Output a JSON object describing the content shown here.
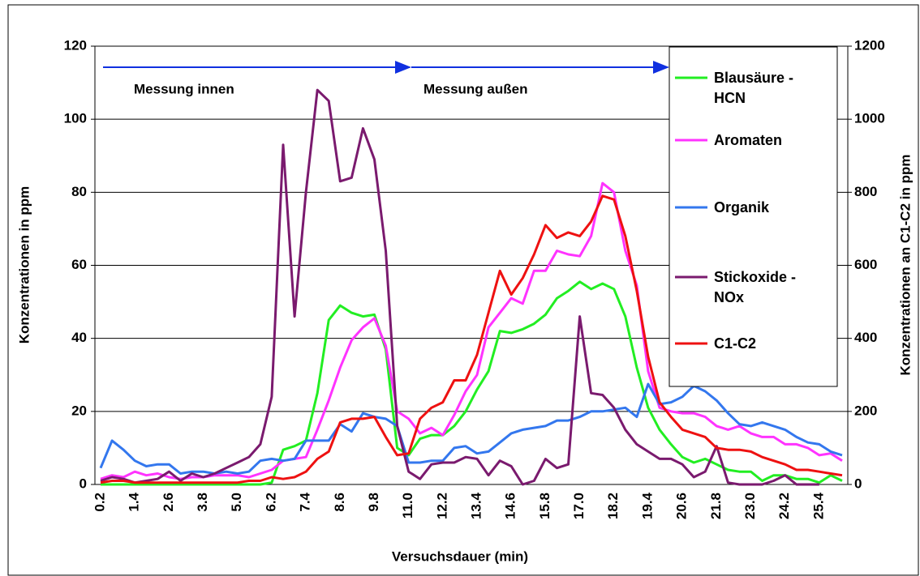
{
  "chart_data": {
    "type": "line",
    "xlabel": "Versuchsdauer (min)",
    "ylabel": "Konzentrationen in ppm",
    "y2label": "Konzentrationen an C1-C2 in ppm",
    "annotations": [
      "Messung innen",
      "Messung außen"
    ],
    "categories": [
      "0.2",
      null,
      null,
      "1.4",
      null,
      null,
      "2.6",
      null,
      null,
      "3.8",
      null,
      null,
      "5.0",
      null,
      null,
      "6.2",
      null,
      null,
      "7.4",
      null,
      null,
      "8.6",
      null,
      null,
      "9.8",
      null,
      null,
      "11.0",
      null,
      null,
      "12.2",
      null,
      null,
      "13.4",
      null,
      null,
      "14.6",
      null,
      null,
      "15.8",
      null,
      null,
      "17.0",
      null,
      null,
      "18.2",
      null,
      null,
      "19.4",
      null,
      null,
      "20.6",
      null,
      null,
      "21.8",
      null,
      null,
      "23.0",
      null,
      null,
      "24.2",
      null,
      null,
      "25.4",
      null,
      null
    ],
    "ylim": [
      0,
      120
    ],
    "yticks": [
      0,
      20,
      40,
      60,
      80,
      100,
      120
    ],
    "y2lim": [
      0,
      1200
    ],
    "y2ticks": [
      0,
      200,
      400,
      600,
      800,
      1000,
      1200
    ],
    "grid": true,
    "series": [
      {
        "name": "Blausäure - HCN",
        "color": "#22ee22",
        "values": [
          0,
          0,
          0,
          0,
          0,
          0,
          0,
          0,
          0,
          0,
          0,
          0,
          0,
          0,
          0,
          0.5,
          9.5,
          10.5,
          12,
          25,
          45,
          49,
          47,
          46,
          46.5,
          37,
          10,
          8,
          12.5,
          13.5,
          13.5,
          16,
          20,
          26,
          31,
          42,
          41.5,
          42.5,
          44,
          46.5,
          51,
          53,
          55.5,
          53.5,
          55,
          53.5,
          46,
          32,
          21,
          15,
          11,
          7.5,
          6,
          7,
          5.5,
          4,
          3.5,
          3.5,
          1,
          2.5,
          2.5,
          1.5,
          1.5,
          0.5,
          2.5,
          1
        ]
      },
      {
        "name": "Aromaten",
        "color": "#ff33ff",
        "values": [
          1.5,
          2.5,
          2,
          3.5,
          2.5,
          3,
          2,
          1.5,
          2,
          2,
          2.5,
          2.5,
          2.5,
          2,
          3,
          4,
          6.5,
          7,
          7.5,
          15,
          23,
          32,
          39.5,
          43,
          45.5,
          38,
          20,
          18,
          14,
          15.5,
          13.5,
          19,
          25.5,
          30,
          43,
          47,
          51,
          49.5,
          58.5,
          58.5,
          64,
          63,
          62.5,
          68,
          82.5,
          80,
          64,
          54.5,
          31,
          21,
          20,
          19.5,
          19.5,
          18.5,
          16,
          15,
          16,
          14,
          13,
          13,
          11,
          11,
          10,
          8,
          8.5,
          6.5
        ]
      },
      {
        "name": "Organik",
        "color": "#3377ee",
        "values": [
          4.5,
          12,
          9.5,
          6.5,
          5,
          5.5,
          5.5,
          3,
          3.5,
          3.5,
          3,
          3.5,
          3,
          3.5,
          6.5,
          7,
          6.5,
          7,
          12,
          12,
          12,
          16.5,
          14.5,
          19.5,
          18.5,
          18,
          16,
          6,
          6,
          6.5,
          6.5,
          10,
          10.5,
          8.5,
          9,
          11.5,
          14,
          15,
          15.5,
          16,
          17.5,
          17.5,
          18.5,
          20,
          20,
          20.5,
          21,
          18.5,
          27.5,
          22,
          22.5,
          24,
          27,
          25.5,
          23,
          19.5,
          16.5,
          16,
          17,
          16,
          15,
          13,
          11.5,
          11,
          9,
          8
        ]
      },
      {
        "name": "Stickoxide - NOx",
        "color": "#7a1a6e",
        "values": [
          1,
          2,
          1.5,
          0.5,
          1,
          1.5,
          3.5,
          1,
          3,
          2,
          3,
          4.5,
          6,
          7.5,
          11,
          24,
          93,
          46,
          80,
          108,
          105,
          83,
          84,
          97.5,
          89,
          64,
          16,
          3.5,
          1.5,
          5.5,
          6,
          6,
          7.5,
          7,
          2.5,
          6.5,
          5,
          0,
          1,
          7,
          4.5,
          5.5,
          46,
          25,
          24.5,
          21,
          15,
          11,
          9,
          7,
          7,
          5.5,
          2,
          3.5,
          10.5,
          0.5,
          0,
          0,
          0,
          1,
          2.5,
          0,
          0,
          0,
          null,
          null
        ]
      },
      {
        "name": "C1-C2",
        "color": "#ee1111",
        "axis": "y2",
        "values": [
          5,
          10,
          10,
          5,
          5,
          5,
          5,
          5,
          5,
          5,
          5,
          5,
          5,
          10,
          10,
          20,
          15,
          20,
          35,
          70,
          90,
          170,
          180,
          180,
          185,
          130,
          80,
          85,
          180,
          210,
          225,
          285,
          285,
          355,
          470,
          585,
          520,
          565,
          630,
          710,
          675,
          690,
          680,
          720,
          790,
          780,
          680,
          530,
          350,
          225,
          185,
          150,
          140,
          130,
          100,
          95,
          95,
          90,
          75,
          65,
          55,
          40,
          40,
          35,
          30,
          25
        ]
      }
    ]
  }
}
